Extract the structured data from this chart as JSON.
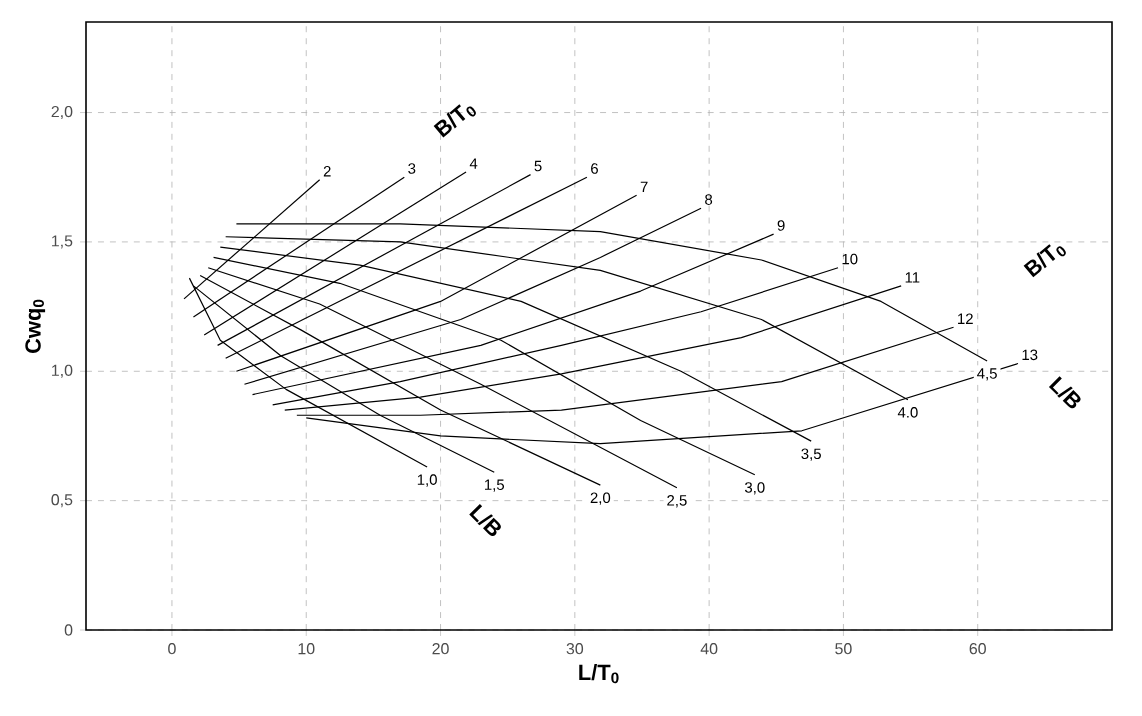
{
  "chart_data": {
    "type": "line",
    "xlabel": "L/T$_{0}$",
    "ylabel": "Cwq$_{0}$",
    "xlim": [
      -6.4,
      70
    ],
    "ylim": [
      0,
      2.35
    ],
    "xticks": [
      0,
      10,
      20,
      30,
      40,
      50,
      60
    ],
    "yticks": [
      0,
      {
        "value": 0.5,
        "label": "0,5"
      },
      {
        "value": 1.0,
        "label": "1,0"
      },
      {
        "value": 1.5,
        "label": "1,5"
      },
      {
        "value": 2.0,
        "label": "2,0"
      }
    ],
    "grid": true,
    "legend": false,
    "marker": "none",
    "line_style": "solid",
    "annotations": [
      "B/T$_{0}$",
      "B/T$_{0}$",
      "L/B",
      "L/B"
    ],
    "series": [
      {
        "name": "2",
        "color": "#000000",
        "x": [
          0.9,
          11.0
        ],
        "values": [
          1.28,
          1.74
        ]
      },
      {
        "name": "3",
        "color": "#000000",
        "x": [
          1.6,
          17.3
        ],
        "values": [
          1.21,
          1.75
        ]
      },
      {
        "name": "4",
        "color": "#000000",
        "x": [
          2.4,
          21.9
        ],
        "values": [
          1.14,
          1.77
        ]
      },
      {
        "name": "5",
        "color": "#000000",
        "x": [
          3.4,
          26.7
        ],
        "values": [
          1.1,
          1.76
        ]
      },
      {
        "name": "6",
        "color": "#000000",
        "x": [
          4.0,
          30.9
        ],
        "values": [
          1.05,
          1.75
        ]
      },
      {
        "name": "7",
        "color": "#000000",
        "x": [
          4.8,
          20.0,
          34.6
        ],
        "values": [
          1.0,
          1.27,
          1.68
        ]
      },
      {
        "name": "8",
        "color": "#000000",
        "x": [
          5.4,
          21.5,
          31.9,
          39.4
        ],
        "values": [
          0.95,
          1.2,
          1.44,
          1.63
        ]
      },
      {
        "name": "9",
        "color": "#000000",
        "x": [
          6.0,
          23.0,
          34.9,
          44.8
        ],
        "values": [
          0.91,
          1.1,
          1.31,
          1.53
        ]
      },
      {
        "name": "10",
        "color": "#000000",
        "x": [
          7.5,
          17.0,
          29.0,
          39.4,
          49.6
        ],
        "values": [
          0.87,
          0.96,
          1.1,
          1.23,
          1.4
        ]
      },
      {
        "name": "11",
        "color": "#000000",
        "x": [
          8.4,
          18.5,
          29.0,
          42.4,
          54.3
        ],
        "values": [
          0.85,
          0.9,
          0.99,
          1.13,
          1.33
        ]
      },
      {
        "name": "12",
        "color": "#000000",
        "x": [
          9.3,
          18.5,
          29.0,
          45.4,
          58.2
        ],
        "values": [
          0.83,
          0.83,
          0.85,
          0.96,
          1.17
        ]
      },
      {
        "name": "13",
        "color": "#000000",
        "x": [
          10.0,
          20.0,
          31.9,
          46.9,
          63.0
        ],
        "values": [
          0.82,
          0.75,
          0.72,
          0.77,
          1.03
        ]
      },
      {
        "name": "1,0",
        "color": "#000000",
        "x": [
          1.3,
          3.6,
          8.5,
          19.0
        ],
        "values": [
          1.36,
          1.12,
          0.93,
          0.63
        ]
      },
      {
        "name": "1,5",
        "color": "#000000",
        "x": [
          1.6,
          8.1,
          15.5,
          24.0
        ],
        "values": [
          1.33,
          1.06,
          0.83,
          0.61
        ]
      },
      {
        "name": "2,0",
        "color": "#000000",
        "x": [
          2.1,
          9.6,
          20.0,
          31.9
        ],
        "values": [
          1.37,
          1.16,
          0.85,
          0.56
        ]
      },
      {
        "name": "2,5",
        "color": "#000000",
        "x": [
          2.7,
          11.0,
          23.0,
          37.6
        ],
        "values": [
          1.4,
          1.26,
          0.95,
          0.55
        ]
      },
      {
        "name": "3,0",
        "color": "#000000",
        "x": [
          3.1,
          12.5,
          24.5,
          34.9,
          43.4
        ],
        "values": [
          1.44,
          1.34,
          1.12,
          0.81,
          0.6
        ]
      },
      {
        "name": "3,5",
        "color": "#000000",
        "x": [
          3.6,
          14.0,
          26.0,
          37.9,
          47.6
        ],
        "values": [
          1.48,
          1.41,
          1.27,
          1.0,
          0.73
        ]
      },
      {
        "name": "4.0",
        "color": "#000000",
        "x": [
          4.0,
          17.0,
          31.9,
          43.9,
          54.8
        ],
        "values": [
          1.52,
          1.5,
          1.39,
          1.2,
          0.89
        ]
      },
      {
        "name": "4,5",
        "color": "#000000",
        "x": [
          4.8,
          17.0,
          31.9,
          43.9,
          52.8,
          60.7
        ],
        "values": [
          1.57,
          1.57,
          1.54,
          1.43,
          1.27,
          1.04
        ]
      }
    ]
  }
}
